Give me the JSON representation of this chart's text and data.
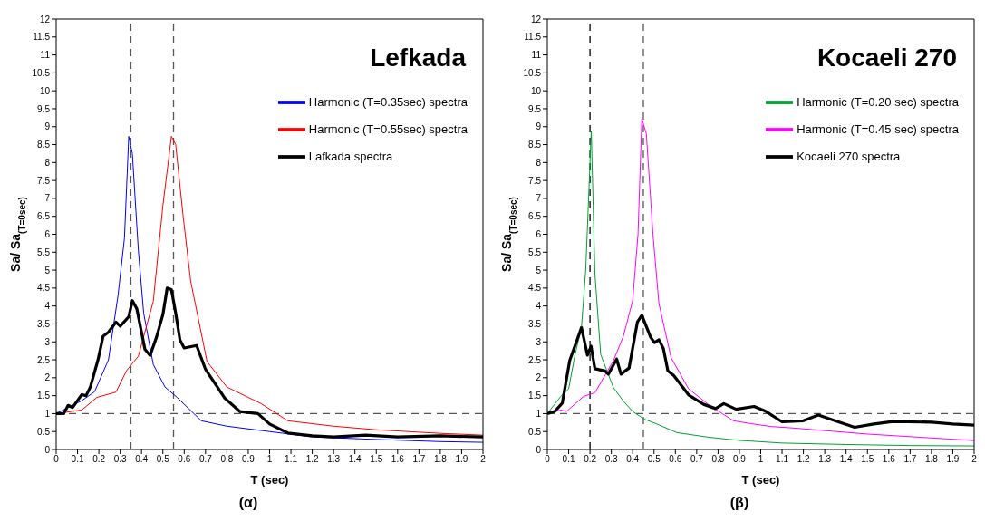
{
  "chart_data": [
    {
      "type": "line",
      "title": "Lefkada",
      "xlabel": "T (sec)",
      "ylabel": "Sa/ Sa$_{(T=0sec)}$",
      "annotations": [
        "(α)"
      ],
      "xlim": [
        0,
        2
      ],
      "xticks": [
        0,
        0.1,
        0.2,
        0.3,
        0.4,
        0.5,
        0.6,
        0.7,
        0.8,
        0.9,
        1,
        1.1,
        1.2,
        1.3,
        1.4,
        1.5,
        1.6,
        1.7,
        1.8,
        1.9,
        2
      ],
      "ylim": [
        0,
        12
      ],
      "yticks": [
        0,
        0.5,
        1,
        1.5,
        2,
        2.5,
        3,
        3.5,
        4,
        4.5,
        5,
        5.5,
        6,
        6.5,
        7,
        7.5,
        8,
        8.5,
        9,
        9.5,
        10,
        10.5,
        11,
        11.5,
        12
      ],
      "legend": "top right",
      "ref_lines": [
        {
          "axis": "y",
          "value": 1,
          "color": "#555555",
          "line_style": "dashed"
        },
        {
          "axis": "x",
          "value": 0.35,
          "color": "#555555",
          "line_style": "dashed"
        },
        {
          "axis": "x",
          "value": 0.55,
          "color": "#555555",
          "line_style": "dashed"
        }
      ],
      "series": [
        {
          "name": "Harmonic (T=0.35sec) spectra",
          "color": "#0000ff",
          "x": [
            0,
            0.12,
            0.18,
            0.245,
            0.29,
            0.32,
            0.34,
            0.357,
            0.385,
            0.41,
            0.455,
            0.51,
            0.567,
            0.68,
            0.8,
            1,
            1.2,
            1.5,
            1.8,
            2
          ],
          "values": [
            1,
            1.36,
            1.61,
            2.5,
            4.3,
            5.9,
            8.73,
            8.25,
            5.56,
            3.8,
            2.37,
            1.74,
            1.45,
            0.8,
            0.65,
            0.5,
            0.35,
            0.28,
            0.22,
            0.2
          ]
        },
        {
          "name": "Harmonic (T=0.55sec) spectra",
          "color": "#ff0000",
          "x": [
            0,
            0.12,
            0.19,
            0.28,
            0.33,
            0.385,
            0.455,
            0.5,
            0.54,
            0.56,
            0.595,
            0.63,
            0.707,
            0.8,
            0.96,
            1.085,
            1.3,
            1.5,
            1.8,
            2
          ],
          "values": [
            1,
            1.1,
            1.45,
            1.6,
            2.2,
            2.6,
            4.13,
            6.8,
            8.73,
            8.5,
            6.5,
            4.7,
            2.45,
            1.74,
            1.28,
            0.8,
            0.65,
            0.55,
            0.45,
            0.4
          ]
        },
        {
          "name": "Lafkada spectra",
          "color": "#000000",
          "x": [
            0,
            0.035,
            0.056,
            0.077,
            0.12,
            0.14,
            0.16,
            0.196,
            0.22,
            0.245,
            0.28,
            0.3,
            0.34,
            0.357,
            0.378,
            0.416,
            0.44,
            0.47,
            0.5,
            0.52,
            0.54,
            0.56,
            0.58,
            0.6,
            0.658,
            0.7,
            0.79,
            0.86,
            0.945,
            1,
            1.085,
            1.2,
            1.3,
            1.45,
            1.6,
            1.8,
            2
          ],
          "values": [
            1,
            1,
            1.23,
            1.17,
            1.53,
            1.5,
            1.74,
            2.5,
            3.16,
            3.27,
            3.55,
            3.44,
            3.7,
            4.15,
            3.92,
            2.79,
            2.62,
            3.13,
            3.76,
            4.5,
            4.46,
            3.8,
            3.05,
            2.83,
            2.9,
            2.23,
            1.43,
            1.06,
            1,
            0.71,
            0.46,
            0.38,
            0.35,
            0.4,
            0.35,
            0.38,
            0.35
          ]
        }
      ]
    },
    {
      "type": "line",
      "title": "Kocaeli 270",
      "xlabel": "T (sec)",
      "ylabel": "Sa/ Sa$_{(T=0sec)}$",
      "annotations": [
        "(β)"
      ],
      "xlim": [
        0,
        2
      ],
      "xticks": [
        0,
        0.1,
        0.2,
        0.3,
        0.4,
        0.5,
        0.6,
        0.7,
        0.8,
        0.9,
        1,
        1.1,
        1.2,
        1.3,
        1.4,
        1.5,
        1.6,
        1.7,
        1.8,
        1.9,
        2
      ],
      "ylim": [
        0,
        12
      ],
      "yticks": [
        0,
        0.5,
        1,
        1.5,
        2,
        2.5,
        3,
        3.5,
        4,
        4.5,
        5,
        5.5,
        6,
        6.5,
        7,
        7.5,
        8,
        8.5,
        9,
        9.5,
        10,
        10.5,
        11,
        11.5,
        12
      ],
      "legend": "top right",
      "ref_lines": [
        {
          "axis": "y",
          "value": 1,
          "color": "#555555",
          "line_style": "dashed"
        },
        {
          "axis": "x",
          "value": 0.2,
          "color": "#000000",
          "line_style": "dashed"
        },
        {
          "axis": "x",
          "value": 0.45,
          "color": "#555555",
          "line_style": "dashed"
        }
      ],
      "series": [
        {
          "name": "Harmonic (T=0.20 sec) spectra",
          "color": "#00a033",
          "x": [
            0,
            0.063,
            0.1,
            0.13,
            0.16,
            0.18,
            0.206,
            0.223,
            0.25,
            0.31,
            0.356,
            0.4,
            0.453,
            0.51,
            0.607,
            0.746,
            0.886,
            1.1,
            1.4,
            1.7,
            2
          ],
          "values": [
            1,
            1.48,
            1.69,
            2.65,
            3.4,
            5,
            8.89,
            4.9,
            2.65,
            1.72,
            1.35,
            1.06,
            0.85,
            0.72,
            0.47,
            0.35,
            0.26,
            0.18,
            0.14,
            0.11,
            0.1
          ]
        },
        {
          "name": "Harmonic (T=0.45 sec) spectra",
          "color": "#ff00ff",
          "x": [
            0,
            0.063,
            0.09,
            0.17,
            0.223,
            0.31,
            0.356,
            0.4,
            0.425,
            0.443,
            0.464,
            0.495,
            0.523,
            0.58,
            0.662,
            0.76,
            0.872,
            0.955,
            1.05,
            1.15,
            1.5,
            2
          ],
          "values": [
            1,
            1.1,
            1.06,
            1.48,
            1.58,
            2.48,
            3.15,
            4.15,
            6,
            9.22,
            8.8,
            6,
            4.07,
            2.56,
            1.69,
            1.23,
            0.8,
            0.72,
            0.64,
            0.6,
            0.43,
            0.25
          ]
        },
        {
          "name": "Kocaeli 270 spectra",
          "color": "#000000",
          "x": [
            0,
            0.035,
            0.07,
            0.105,
            0.16,
            0.188,
            0.205,
            0.223,
            0.27,
            0.286,
            0.325,
            0.345,
            0.383,
            0.422,
            0.443,
            0.484,
            0.502,
            0.523,
            0.544,
            0.565,
            0.593,
            0.662,
            0.732,
            0.788,
            0.827,
            0.885,
            0.969,
            1.025,
            1.1,
            1.2,
            1.27,
            1.345,
            1.44,
            1.53,
            1.62,
            1.8,
            1.9,
            2
          ],
          "values": [
            1,
            1.06,
            1.29,
            2.48,
            3.4,
            2.63,
            2.88,
            2.25,
            2.19,
            2.1,
            2.52,
            2.1,
            2.27,
            3.55,
            3.74,
            3.13,
            2.98,
            3.06,
            2.81,
            2.19,
            2.06,
            1.52,
            1.26,
            1.14,
            1.28,
            1.12,
            1.2,
            1.06,
            0.77,
            0.8,
            0.96,
            0.81,
            0.62,
            0.71,
            0.78,
            0.76,
            0.71,
            0.68
          ]
        }
      ]
    }
  ]
}
